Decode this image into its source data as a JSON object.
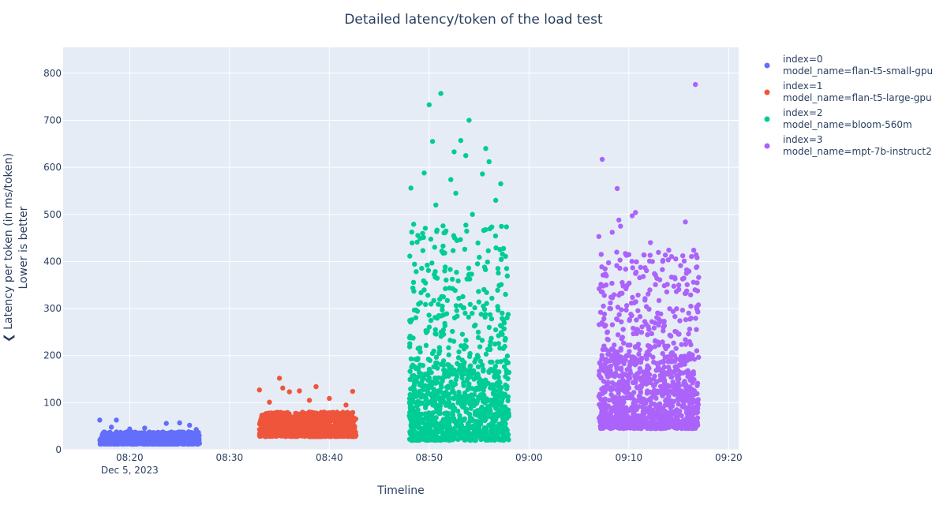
{
  "chart_data": {
    "type": "scatter",
    "title": "Detailed latency/token of the load test",
    "xlabel": "Timeline",
    "ylabel_line1": "❮ Latency per token (in ms/token)",
    "ylabel_line2": "Lower is better",
    "x_axis": {
      "type": "date",
      "range": [
        "2023-12-05 08:13:20",
        "2023-12-05 09:21:00"
      ],
      "ticks": [
        {
          "value": "2023-12-05 08:20",
          "label": "08:20",
          "sublabel": "Dec 5, 2023"
        },
        {
          "value": "2023-12-05 08:30",
          "label": "08:30",
          "sublabel": ""
        },
        {
          "value": "2023-12-05 08:40",
          "label": "08:40",
          "sublabel": ""
        },
        {
          "value": "2023-12-05 08:50",
          "label": "08:50",
          "sublabel": ""
        },
        {
          "value": "2023-12-05 09:00",
          "label": "09:00",
          "sublabel": ""
        },
        {
          "value": "2023-12-05 09:10",
          "label": "09:10",
          "sublabel": ""
        },
        {
          "value": "2023-12-05 09:20",
          "label": "09:20",
          "sublabel": ""
        }
      ]
    },
    "y_axis": {
      "range": [
        0,
        855
      ],
      "ticks": [
        0,
        100,
        200,
        300,
        400,
        500,
        600,
        700,
        800
      ]
    },
    "grid": true,
    "legend_position": "right",
    "series": [
      {
        "name_line1": "index=0",
        "name_line2": "model_name=flan-t5-small-gpu",
        "color": "#636efa",
        "x_range": [
          "2023-12-05 08:17:00",
          "2023-12-05 08:27:00"
        ],
        "points": [
          [
            "2023-12-05 08:17:00",
            63
          ],
          [
            "2023-12-05 08:18:10",
            48
          ],
          [
            "2023-12-05 08:18:40",
            63
          ],
          [
            "2023-12-05 08:20:00",
            44
          ],
          [
            "2023-12-05 08:21:30",
            46
          ],
          [
            "2023-12-05 08:23:40",
            56
          ],
          [
            "2023-12-05 08:25:00",
            57
          ],
          [
            "2023-12-05 08:26:00",
            52
          ],
          [
            "2023-12-05 08:26:40",
            43
          ]
        ],
        "typical_range": [
          12,
          38
        ]
      },
      {
        "name_line1": "index=1",
        "name_line2": "model_name=flan-t5-large-gpu",
        "color": "#ef553b",
        "x_range": [
          "2023-12-05 08:33:00",
          "2023-12-05 08:42:40"
        ],
        "points": [
          [
            "2023-12-05 08:33:00",
            127
          ],
          [
            "2023-12-05 08:34:00",
            101
          ],
          [
            "2023-12-05 08:35:00",
            152
          ],
          [
            "2023-12-05 08:35:20",
            131
          ],
          [
            "2023-12-05 08:36:00",
            123
          ],
          [
            "2023-12-05 08:37:00",
            125
          ],
          [
            "2023-12-05 08:38:00",
            105
          ],
          [
            "2023-12-05 08:38:40",
            134
          ],
          [
            "2023-12-05 08:40:00",
            109
          ],
          [
            "2023-12-05 08:41:40",
            95
          ],
          [
            "2023-12-05 08:42:20",
            124
          ]
        ],
        "typical_range": [
          28,
          80
        ]
      },
      {
        "name_line1": "index=2",
        "name_line2": "model_name=bloom-560m",
        "color": "#00cc96",
        "x_range": [
          "2023-12-05 08:48:00",
          "2023-12-05 08:58:00"
        ],
        "points": [
          [
            "2023-12-05 08:48:10",
            556
          ],
          [
            "2023-12-05 08:49:30",
            588
          ],
          [
            "2023-12-05 08:50:00",
            733
          ],
          [
            "2023-12-05 08:50:20",
            655
          ],
          [
            "2023-12-05 08:51:10",
            757
          ],
          [
            "2023-12-05 08:52:10",
            574
          ],
          [
            "2023-12-05 08:52:30",
            633
          ],
          [
            "2023-12-05 08:53:10",
            657
          ],
          [
            "2023-12-05 08:53:40",
            625
          ],
          [
            "2023-12-05 08:54:00",
            700
          ],
          [
            "2023-12-05 08:55:20",
            586
          ],
          [
            "2023-12-05 08:55:40",
            640
          ],
          [
            "2023-12-05 08:56:00",
            612
          ],
          [
            "2023-12-05 08:57:10",
            565
          ],
          [
            "2023-12-05 08:50:40",
            520
          ],
          [
            "2023-12-05 08:52:40",
            545
          ],
          [
            "2023-12-05 08:54:20",
            500
          ],
          [
            "2023-12-05 08:56:40",
            530
          ]
        ],
        "typical_range": [
          20,
          180
        ],
        "spread_range": [
          180,
          480
        ]
      },
      {
        "name_line1": "index=3",
        "name_line2": "model_name=mpt-7b-instruct2",
        "color": "#ab63fa",
        "x_range": [
          "2023-12-05 09:07:00",
          "2023-12-05 09:17:00"
        ],
        "points": [
          [
            "2023-12-05 09:07:20",
            617
          ],
          [
            "2023-12-05 09:07:00",
            453
          ],
          [
            "2023-12-05 09:08:20",
            462
          ],
          [
            "2023-12-05 09:08:50",
            555
          ],
          [
            "2023-12-05 09:09:00",
            488
          ],
          [
            "2023-12-05 09:09:10",
            475
          ],
          [
            "2023-12-05 09:10:20",
            497
          ],
          [
            "2023-12-05 09:10:40",
            504
          ],
          [
            "2023-12-05 09:12:10",
            440
          ],
          [
            "2023-12-05 09:14:00",
            424
          ],
          [
            "2023-12-05 09:15:40",
            484
          ],
          [
            "2023-12-05 09:16:40",
            776
          ],
          [
            "2023-12-05 09:16:30",
            424
          ],
          [
            "2023-12-05 09:16:50",
            408
          ]
        ],
        "typical_range": [
          45,
          200
        ],
        "spread_range": [
          200,
          420
        ]
      }
    ]
  }
}
